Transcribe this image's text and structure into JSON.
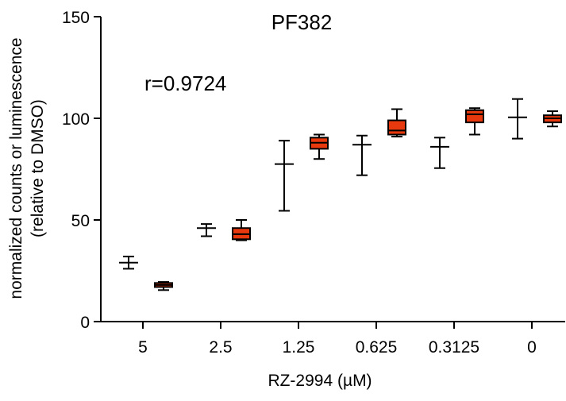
{
  "chart_data": {
    "type": "box",
    "title": "PF382",
    "annotation": "r=0.9724",
    "xlabel": "RZ-2994 (µM)",
    "ylabel_line1": "normalized counts or luminescence",
    "ylabel_line2": "(relative to DMSO)",
    "categories": [
      "5",
      "2.5",
      "1.25",
      "0.625",
      "0.3125",
      "0"
    ],
    "ylim": [
      0,
      150
    ],
    "yticks": [
      0,
      50,
      100,
      150
    ],
    "grid": false,
    "colors": {
      "counts": "#000000",
      "luminescence_fill": "#e8380d",
      "axis": "#000000"
    },
    "series": [
      {
        "style": "whisker-line",
        "boxes": [
          {
            "min": 26.0,
            "q1": 29.0,
            "median": 29.0,
            "q3": 29.0,
            "max": 32.0
          },
          {
            "min": 42.0,
            "q1": 46.0,
            "median": 46.0,
            "q3": 46.0,
            "max": 48.0
          },
          {
            "min": 54.5,
            "q1": 77.5,
            "median": 77.5,
            "q3": 77.5,
            "max": 89.0
          },
          {
            "min": 72.0,
            "q1": 87.0,
            "median": 87.0,
            "q3": 87.0,
            "max": 91.5
          },
          {
            "min": 75.5,
            "q1": 86.0,
            "median": 86.0,
            "q3": 86.0,
            "max": 90.5
          },
          {
            "min": 90.0,
            "q1": 100.5,
            "median": 100.5,
            "q3": 100.5,
            "max": 109.5
          }
        ]
      },
      {
        "style": "filled-box",
        "boxes": [
          {
            "min": 15.5,
            "q1": 17.0,
            "median": 18.0,
            "q3": 19.0,
            "max": 19.5
          },
          {
            "min": 40.0,
            "q1": 40.5,
            "median": 43.0,
            "q3": 46.0,
            "max": 50.0
          },
          {
            "min": 80.0,
            "q1": 85.0,
            "median": 88.0,
            "q3": 90.5,
            "max": 92.0
          },
          {
            "min": 91.0,
            "q1": 92.0,
            "median": 94.0,
            "q3": 99.0,
            "max": 104.5
          },
          {
            "min": 92.0,
            "q1": 98.0,
            "median": 102.0,
            "q3": 104.0,
            "max": 105.0
          },
          {
            "min": 96.0,
            "q1": 98.0,
            "median": 100.0,
            "q3": 101.5,
            "max": 103.5
          }
        ]
      }
    ]
  }
}
